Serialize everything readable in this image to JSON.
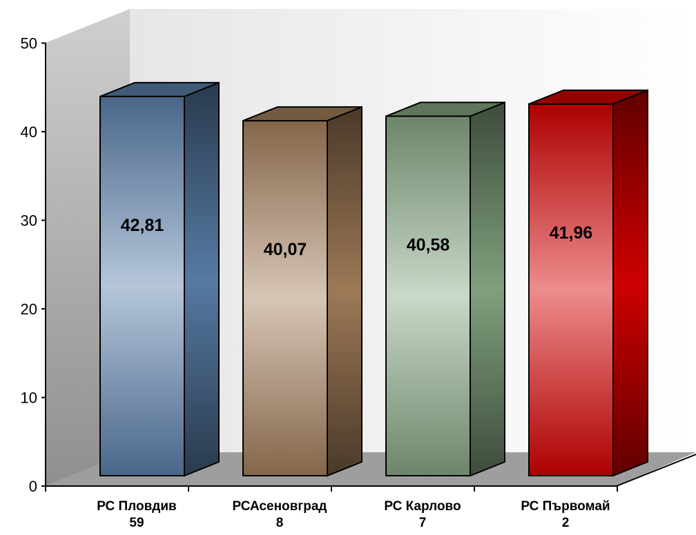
{
  "chart_data": {
    "type": "bar",
    "title": "",
    "xlabel": "",
    "ylabel": "",
    "ylim": [
      0,
      50
    ],
    "yticks": [
      0,
      10,
      20,
      30,
      40,
      50
    ],
    "grid": false,
    "legend": "none",
    "categories": [
      [
        "РС Пловдив",
        "59"
      ],
      [
        "РСАсеновград",
        "8"
      ],
      [
        "РС Карлово",
        "7"
      ],
      [
        "РС Първомай",
        "2"
      ]
    ],
    "value_labels": [
      "42,81",
      "40,07",
      "40,58",
      "41,96"
    ],
    "values": [
      42.81,
      40.07,
      40.58,
      41.96
    ],
    "colors": [
      "#5b80ac",
      "#a57f5c",
      "#87a884",
      "#d80000"
    ]
  }
}
